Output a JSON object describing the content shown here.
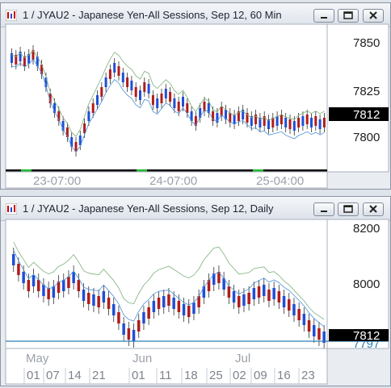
{
  "windows": [
    {
      "title": "1 / JYAU2 - Japanese Yen-All Sessions, Sep 12, 60 Min",
      "price_labels": [
        "7850",
        "7825",
        "7800"
      ],
      "last_price": "7812",
      "time_labels": [
        "23-07:00",
        "24-07:00",
        "25-04:00"
      ],
      "colors": {
        "up": "#1f4fd6",
        "down": "#b01c1c",
        "ma_fast": "#4a90d9",
        "ma_slow": "#7db07d",
        "last_bg": "#000000",
        "session_bar": "#111111",
        "session_green": "#22bb33"
      }
    },
    {
      "title": "1 / JYAU2 - Japanese Yen-All Sessions, Sep 12, Daily",
      "price_labels": [
        "8200",
        "8000"
      ],
      "last_price": "7812",
      "hidden_price": "7797",
      "month_labels": [
        "May",
        "Jun",
        "Jul"
      ],
      "day_labels": [
        "01",
        "07",
        "14",
        "21",
        "01",
        "11",
        "18",
        "25",
        "02",
        "09",
        "16",
        "23"
      ],
      "colors": {
        "up": "#1f4fd6",
        "down": "#b01c1c",
        "ma_fast": "#4a90d9",
        "ma_slow": "#7db07d",
        "hline": "#2a7fb8",
        "last_bg": "#000000"
      }
    }
  ]
}
